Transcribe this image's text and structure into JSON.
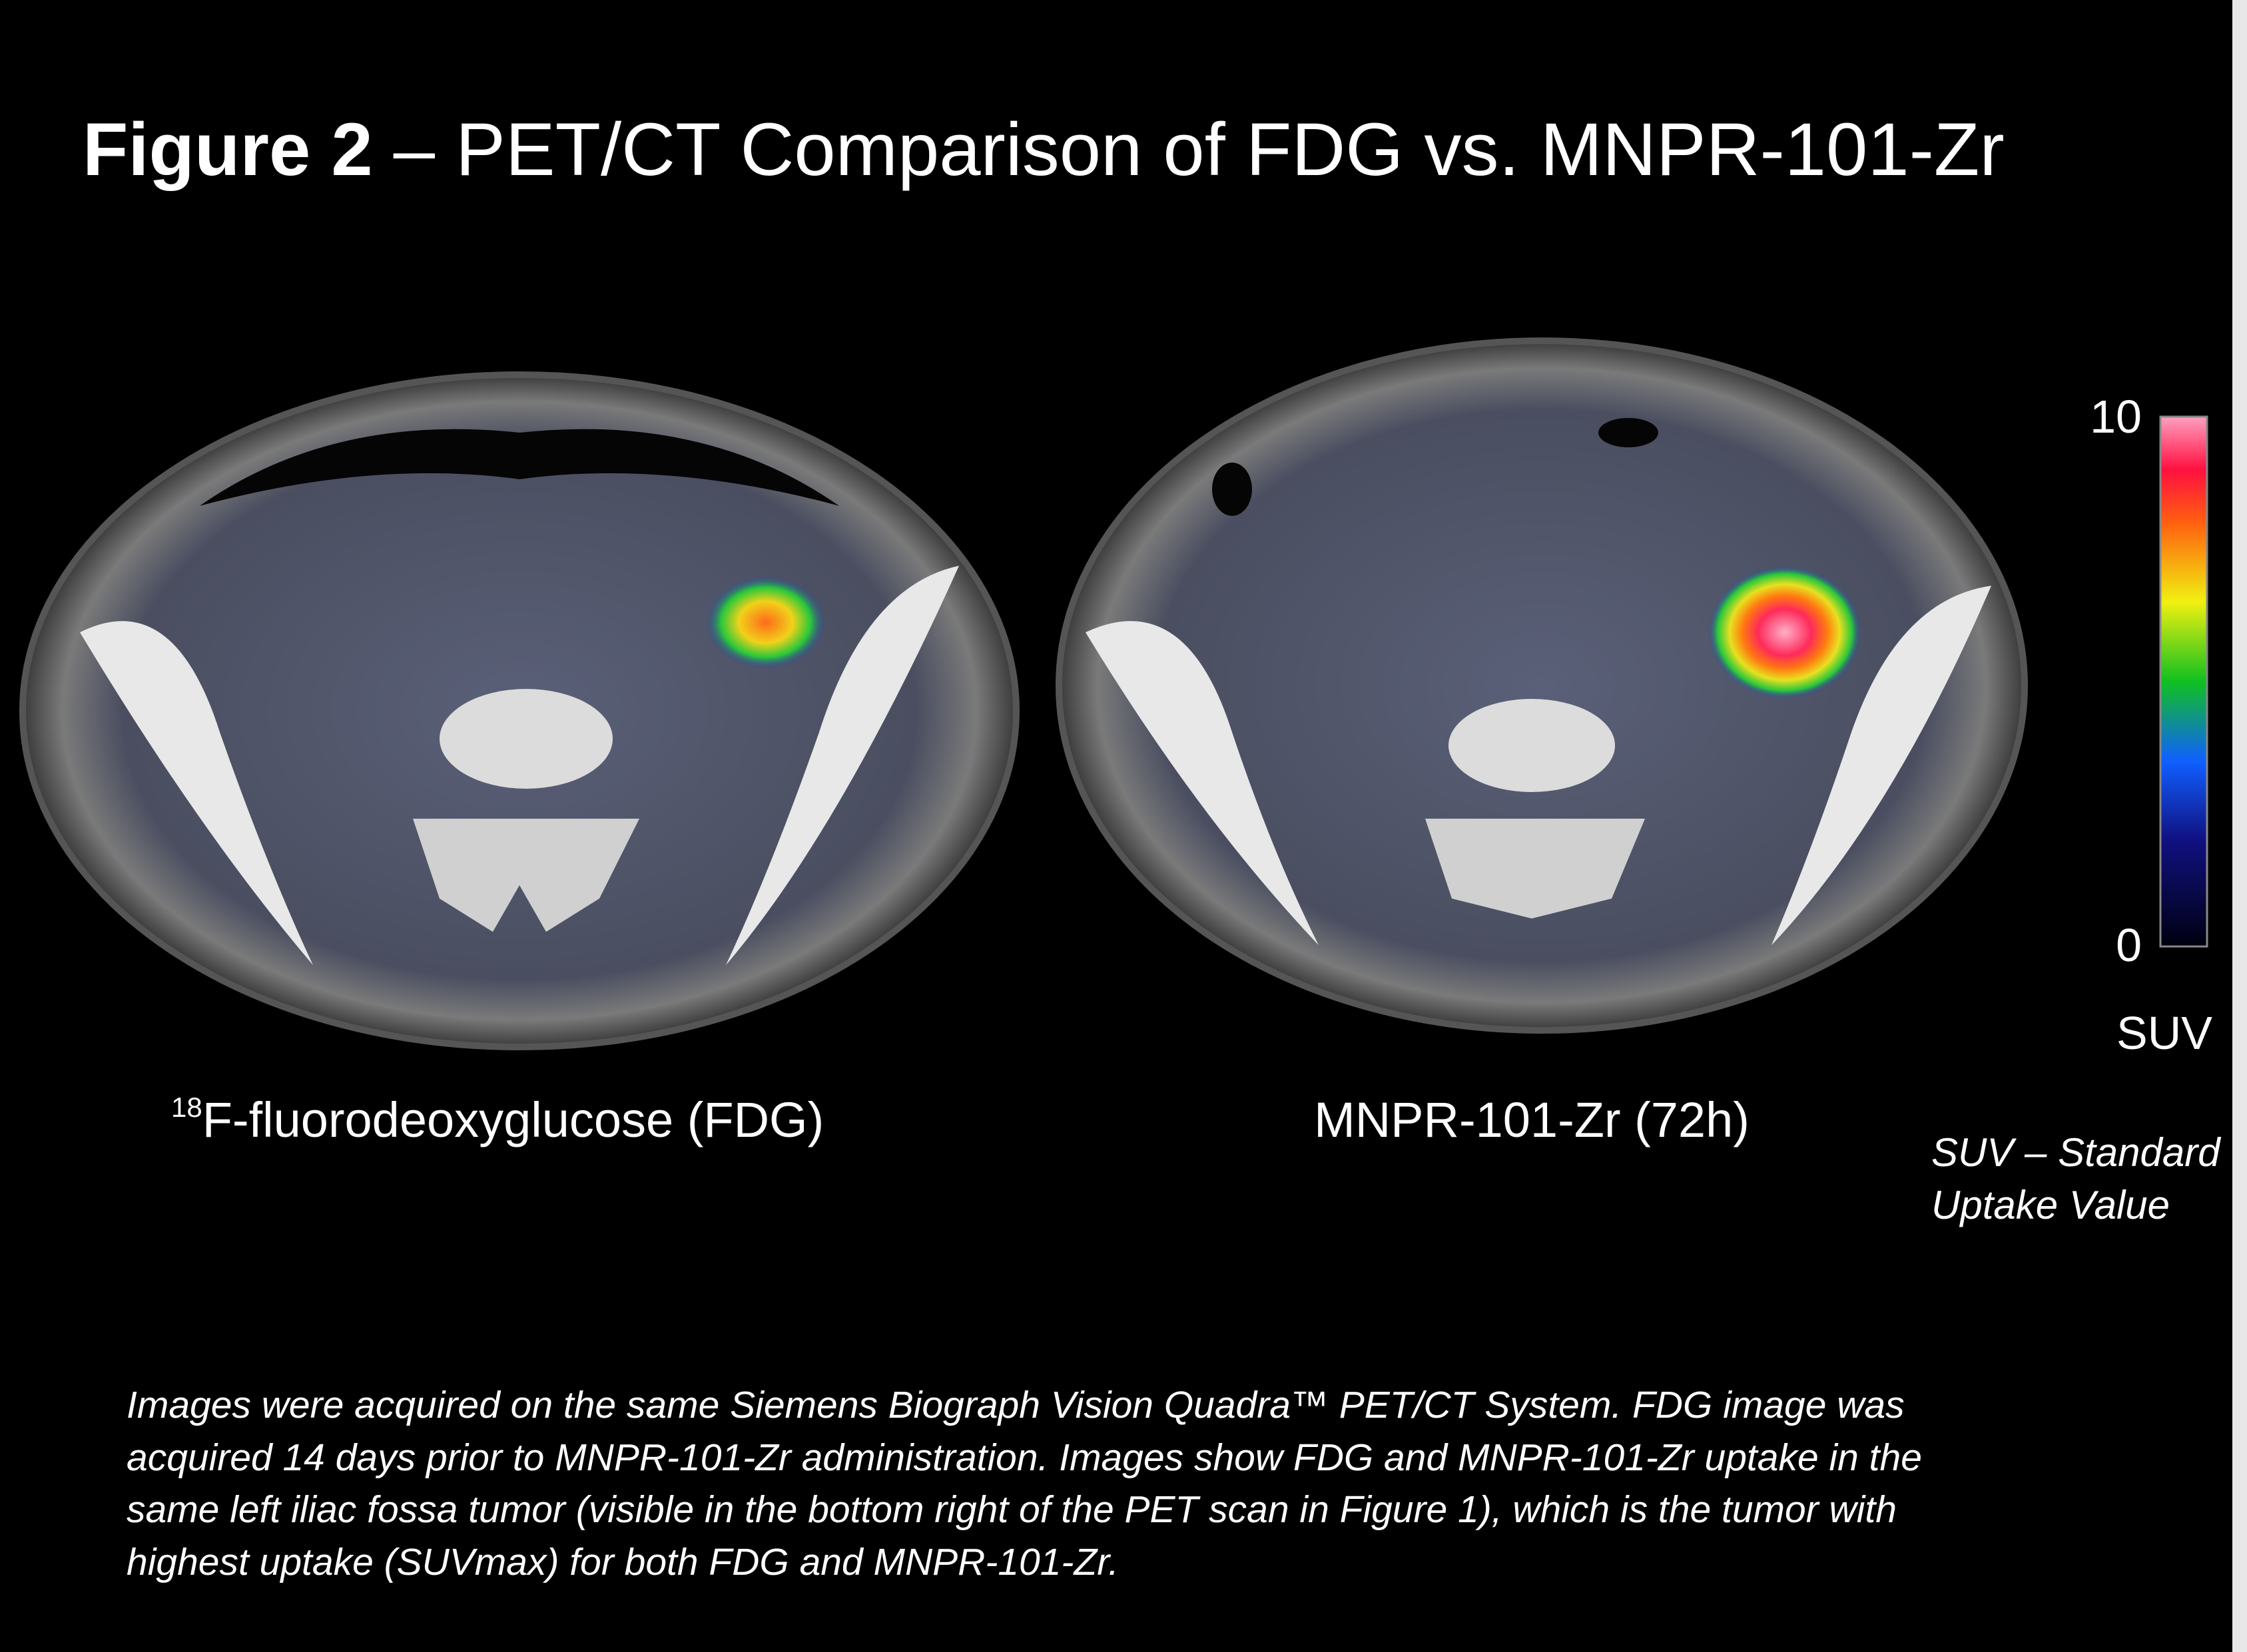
{
  "title": {
    "label": "Figure 2",
    "text": " – PET/CT Comparison of FDG vs. MNPR-101-Zr"
  },
  "panels": [
    {
      "caption_superscript": "18",
      "caption": "F-fluorodeoxyglucose (FDG)"
    },
    {
      "caption": "MNPR-101-Zr (72h)"
    }
  ],
  "colorbar": {
    "max": 10,
    "min": 0,
    "label": "SUV",
    "note": [
      "SUV – Standard",
      "Uptake Value"
    ]
  },
  "footnote": [
    "Images were acquired on the same Siemens Biograph Vision Quadra™ PET/CT System.  FDG image was",
    "acquired 14 days prior to MNPR-101-Zr administration.  Images show FDG and MNPR-101-Zr uptake in the",
    "same left iliac fossa tumor (visible in the bottom right of the PET scan in Figure 1), which is the tumor with",
    "highest uptake (SUVmax) for both FDG and MNPR-101-Zr."
  ]
}
